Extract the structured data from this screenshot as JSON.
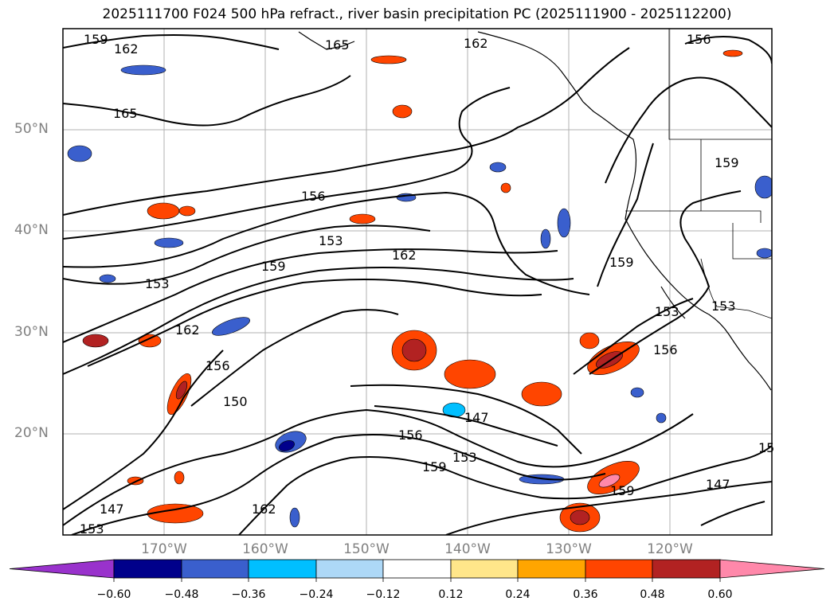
{
  "title": "2025111700 F024 500 hPa refract., river basin precipitation PC (2025111900 - 2025112200)",
  "lat_labels": [
    "50°N",
    "40°N",
    "30°N",
    "20°N"
  ],
  "lon_labels": [
    "170°W",
    "160°W",
    "150°W",
    "140°W",
    "130°W",
    "120°W"
  ],
  "colorbar": {
    "ticks": [
      "−0.60",
      "−0.48",
      "−0.36",
      "−0.24",
      "−0.12",
      "0.12",
      "0.24",
      "0.36",
      "0.48",
      "0.60"
    ],
    "colors": [
      "#9932cc",
      "#00008b",
      "#3a5fcd",
      "#00bfff",
      "#add8f7",
      "#ffffff",
      "#ffe68a",
      "#ffa500",
      "#ff4500",
      "#b22222",
      "#ff88aa"
    ]
  },
  "contour_labels": [
    "159",
    "162",
    "165",
    "165",
    "162",
    "156",
    "159",
    "156",
    "153",
    "162",
    "159",
    "153",
    "162",
    "159",
    "156",
    "150",
    "153",
    "156",
    "147",
    "156",
    "153",
    "159",
    "147",
    "153",
    "159",
    "147",
    "162",
    "153",
    "15"
  ]
}
